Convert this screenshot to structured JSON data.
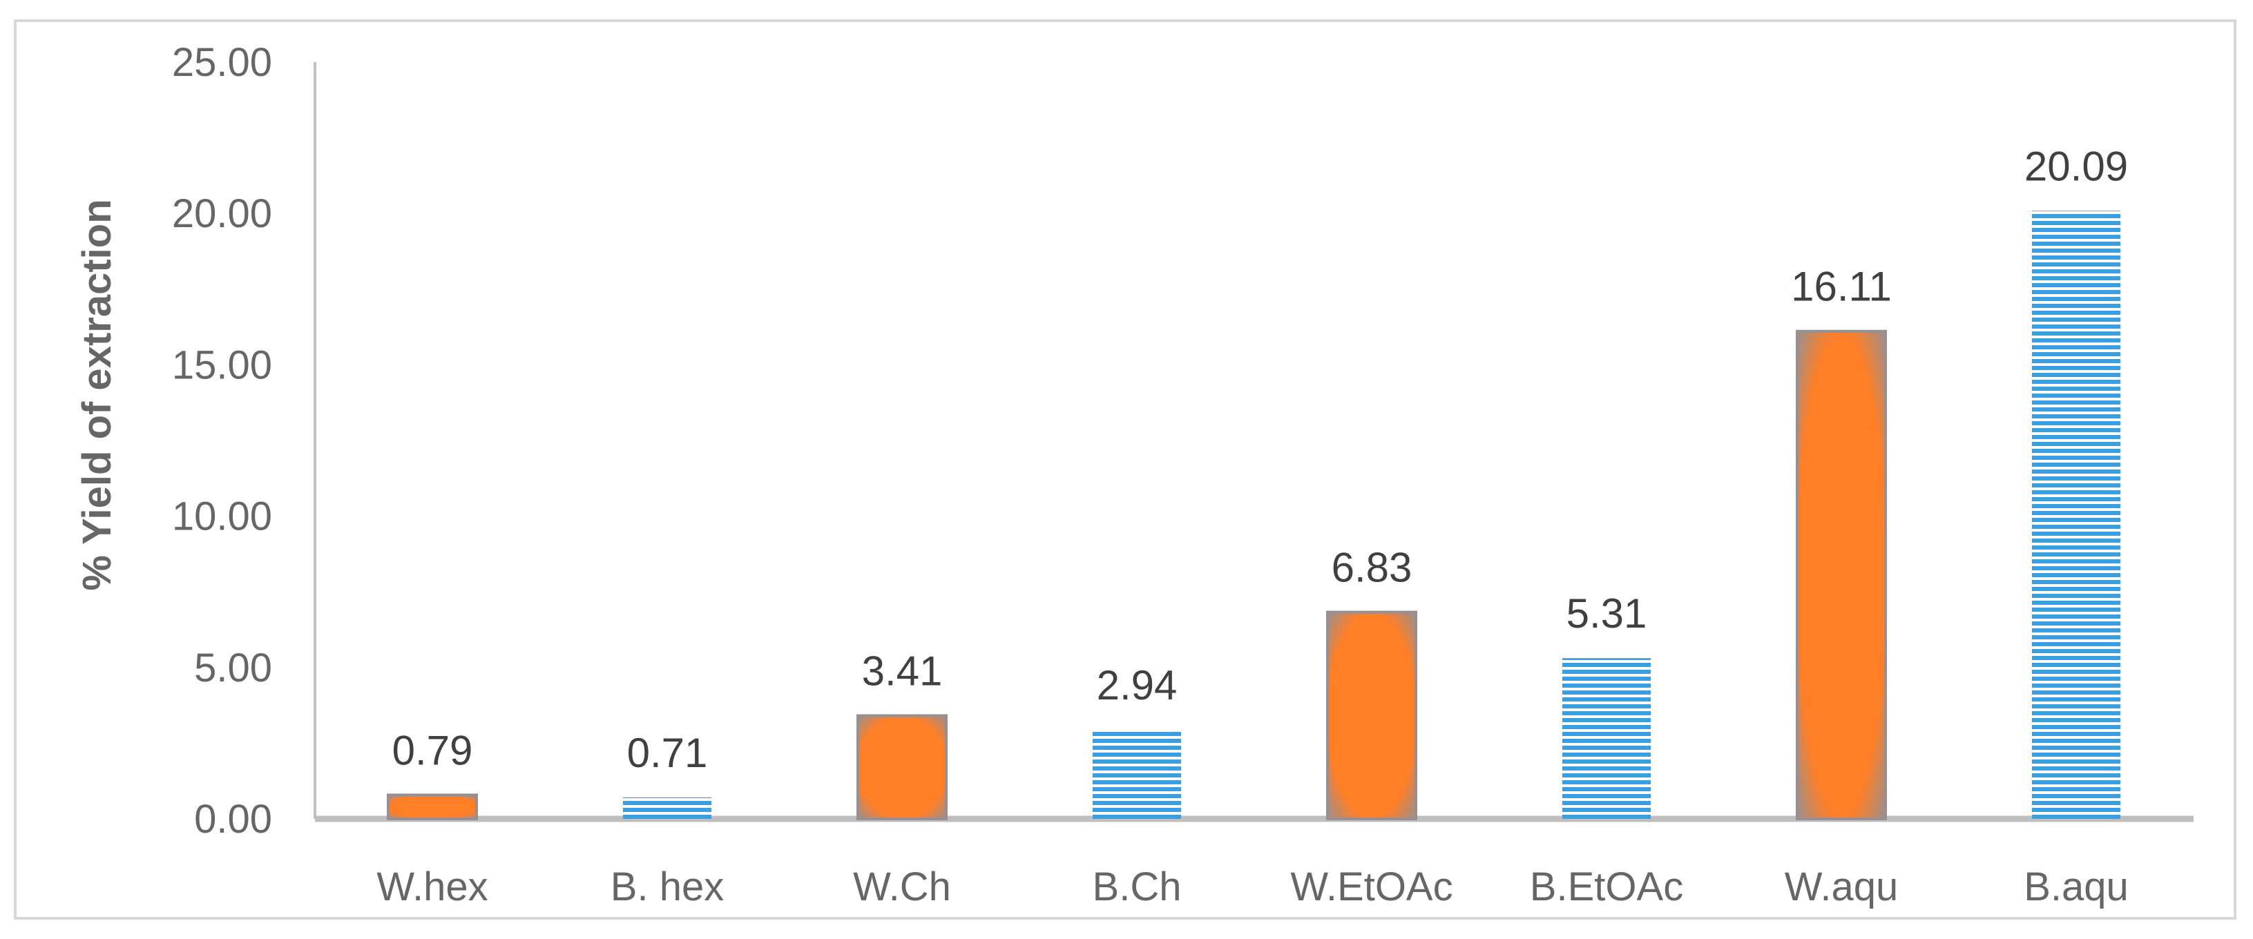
{
  "chart_data": {
    "type": "bar",
    "title": "",
    "xlabel": "",
    "ylabel": "% Yield of extraction",
    "ylim": [
      0,
      25
    ],
    "yticks": [
      "0.00",
      "5.00",
      "10.00",
      "15.00",
      "20.00",
      "25.00"
    ],
    "ytick_values": [
      0,
      5,
      10,
      15,
      20,
      25
    ],
    "grid": false,
    "legend": "none",
    "categories": [
      "W.hex",
      "B. hex",
      "W.Ch",
      "B.Ch",
      "W.EtOAc",
      "B.EtOAc",
      "W.aqu",
      "B.aqu"
    ],
    "values": [
      0.79,
      0.71,
      3.41,
      2.94,
      6.83,
      5.31,
      16.11,
      20.09
    ],
    "data_labels": [
      "0.79",
      "0.71",
      "3.41",
      "2.94",
      "6.83",
      "5.31",
      "16.11",
      "20.09"
    ],
    "bar_styles": [
      "orange-radial",
      "blue-striped",
      "orange-radial",
      "blue-striped",
      "orange-radial",
      "blue-striped",
      "orange-radial",
      "blue-striped"
    ],
    "colors": {
      "orange_center": "#ff7f27",
      "orange_edge": "#9a8f8f",
      "blue_stripe": "#3b9ee0",
      "blue_gap": "#ffffff",
      "axis": "#bfbfbf",
      "tick_text": "#666666",
      "label_text": "#404040"
    }
  }
}
